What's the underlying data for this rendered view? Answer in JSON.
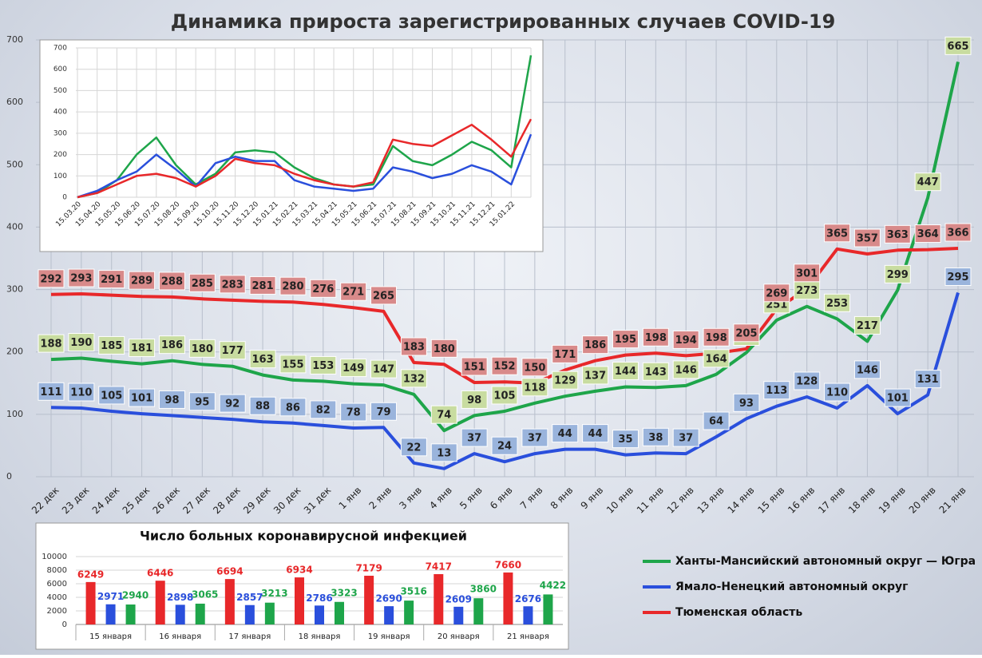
{
  "chart_data": [
    {
      "type": "line",
      "title": "Динамика прироста зарегистрированных случаев COVID-19",
      "categories": [
        "22 дек",
        "23 дек",
        "24 дек",
        "25 дек",
        "26 дек",
        "27 дек",
        "28 дек",
        "29 дек",
        "30 дек",
        "31 дек",
        "1 янв",
        "2 янв",
        "3 янв",
        "4 янв",
        "5 янв",
        "6 янв",
        "7 янв",
        "8 янв",
        "9 янв",
        "10 янв",
        "11 янв",
        "12 янв",
        "13 янв",
        "14 янв",
        "15 янв",
        "16 янв",
        "17 янв",
        "18 янв",
        "19 янв",
        "20 янв",
        "21 янв"
      ],
      "series": [
        {
          "name": "Ханты-Мансийский автономный округ — Югра",
          "color": "#1ea54a",
          "values": [
            188,
            190,
            185,
            181,
            186,
            180,
            177,
            163,
            155,
            153,
            149,
            147,
            132,
            74,
            98,
            105,
            118,
            129,
            137,
            144,
            143,
            146,
            164,
            199,
            251,
            273,
            253,
            217,
            299,
            447,
            665
          ]
        },
        {
          "name": "Ямало-Ненецкий автономный округ",
          "color": "#2a4fdc",
          "values": [
            111,
            110,
            105,
            101,
            98,
            95,
            92,
            88,
            86,
            82,
            78,
            79,
            22,
            13,
            37,
            24,
            37,
            44,
            44,
            35,
            38,
            37,
            64,
            93,
            113,
            128,
            110,
            146,
            101,
            131,
            295
          ]
        },
        {
          "name": "Тюменская область",
          "color": "#e8282a",
          "values": [
            292,
            293,
            291,
            289,
            288,
            285,
            283,
            281,
            280,
            276,
            271,
            265,
            183,
            180,
            151,
            152,
            150,
            171,
            186,
            195,
            198,
            194,
            198,
            205,
            269,
            301,
            365,
            357,
            363,
            364,
            366
          ]
        }
      ],
      "ylim": [
        0,
        700
      ],
      "yticks": [
        0,
        100,
        200,
        300,
        400,
        500,
        600,
        700
      ],
      "grid": true,
      "legend": "bottom-right"
    },
    {
      "type": "line",
      "categories": [
        "15.03.20",
        "15.04.20",
        "15.05.20",
        "15.06.20",
        "15.07.20",
        "15.08.20",
        "15.09.20",
        "15.10.20",
        "15.11.20",
        "15.12.20",
        "15.01.21",
        "15.02.21",
        "15.03.21",
        "15.04.21",
        "15.05.21",
        "15.06.21",
        "15.07.21",
        "15.08.21",
        "15.09.21",
        "15.10.21",
        "15.11.21",
        "15.12.21",
        "15.01.22",
        null
      ],
      "series": [
        {
          "color": "#1ea54a",
          "values": [
            0,
            20,
            80,
            200,
            280,
            150,
            60,
            110,
            210,
            220,
            210,
            140,
            90,
            60,
            50,
            60,
            240,
            170,
            150,
            200,
            260,
            220,
            140,
            665
          ]
        },
        {
          "color": "#2a4fdc",
          "values": [
            0,
            30,
            80,
            120,
            200,
            130,
            50,
            160,
            190,
            170,
            170,
            80,
            50,
            40,
            30,
            40,
            140,
            120,
            90,
            110,
            150,
            120,
            60,
            295
          ]
        },
        {
          "color": "#e8282a",
          "values": [
            0,
            20,
            60,
            100,
            110,
            90,
            50,
            100,
            180,
            160,
            150,
            110,
            80,
            60,
            50,
            70,
            270,
            250,
            240,
            290,
            340,
            270,
            190,
            366
          ]
        }
      ],
      "ylim": [
        0,
        700
      ],
      "yticks": [
        0,
        100,
        200,
        300,
        400,
        500,
        600,
        700
      ],
      "grid": true
    },
    {
      "type": "bar",
      "title": "Число больных коронавирусной  инфекцией",
      "categories": [
        "15 января",
        "16 января",
        "17 января",
        "18 января",
        "19 января",
        "20 января",
        "21 января"
      ],
      "series": [
        {
          "color": "#e8282a",
          "values": [
            6249,
            6446,
            6694,
            6934,
            7179,
            7417,
            7660
          ]
        },
        {
          "color": "#2a4fdc",
          "values": [
            2971,
            2898,
            2857,
            2786,
            2690,
            2609,
            2676
          ]
        },
        {
          "color": "#1ea54a",
          "values": [
            2940,
            3065,
            3213,
            3323,
            3516,
            3860,
            4422
          ]
        }
      ],
      "ylim": [
        0,
        10000
      ],
      "yticks": [
        0,
        2000,
        4000,
        6000,
        8000,
        10000
      ],
      "grid": true
    }
  ]
}
